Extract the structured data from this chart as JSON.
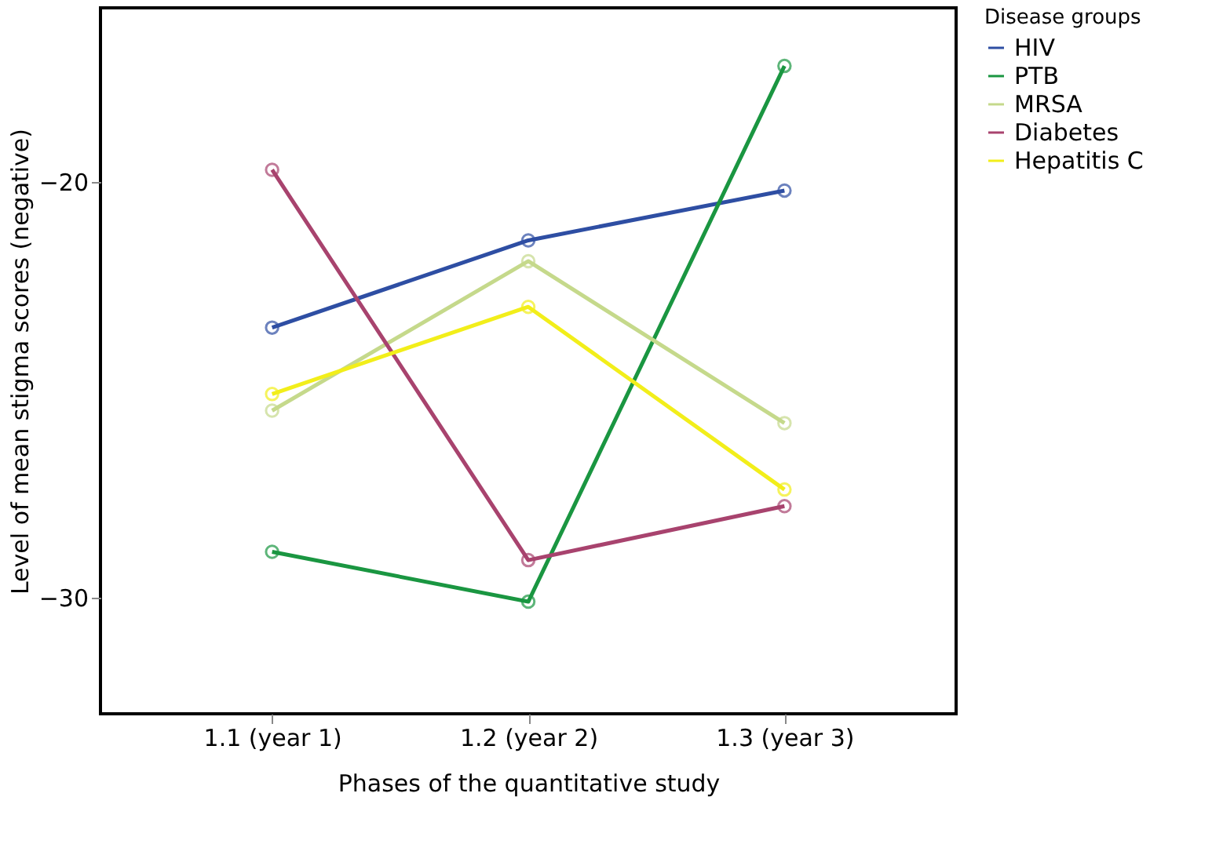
{
  "chart_data": {
    "type": "line",
    "xlabel": "Phases of the quantitative study",
    "ylabel": "Level of mean stigma scores (negative)",
    "legend_title": "Disease groups",
    "categories": [
      "1.1 (year 1)",
      "1.2 (year 2)",
      "1.3 (year 3)"
    ],
    "series": [
      {
        "name": "HIV",
        "color": "#2e4ea3",
        "values": [
          -23.5,
          -21.4,
          -20.2
        ]
      },
      {
        "name": "PTB",
        "color": "#1a9641",
        "values": [
          -28.9,
          -30.1,
          -17.2
        ]
      },
      {
        "name": "MRSA",
        "color": "#c5d98b",
        "values": [
          -25.5,
          -21.9,
          -25.8
        ]
      },
      {
        "name": "Diabetes",
        "color": "#a8436e",
        "values": [
          -19.7,
          -29.1,
          -27.8
        ]
      },
      {
        "name": "Hepatitis C",
        "color": "#f2ee1a",
        "values": [
          -25.1,
          -23.0,
          -27.4
        ]
      }
    ],
    "ylim": [
      -32.8,
      -15.8
    ],
    "yticks": [
      -30,
      -20
    ],
    "grid": false,
    "legend": "right",
    "marker": "circle",
    "line_style": "solid"
  }
}
